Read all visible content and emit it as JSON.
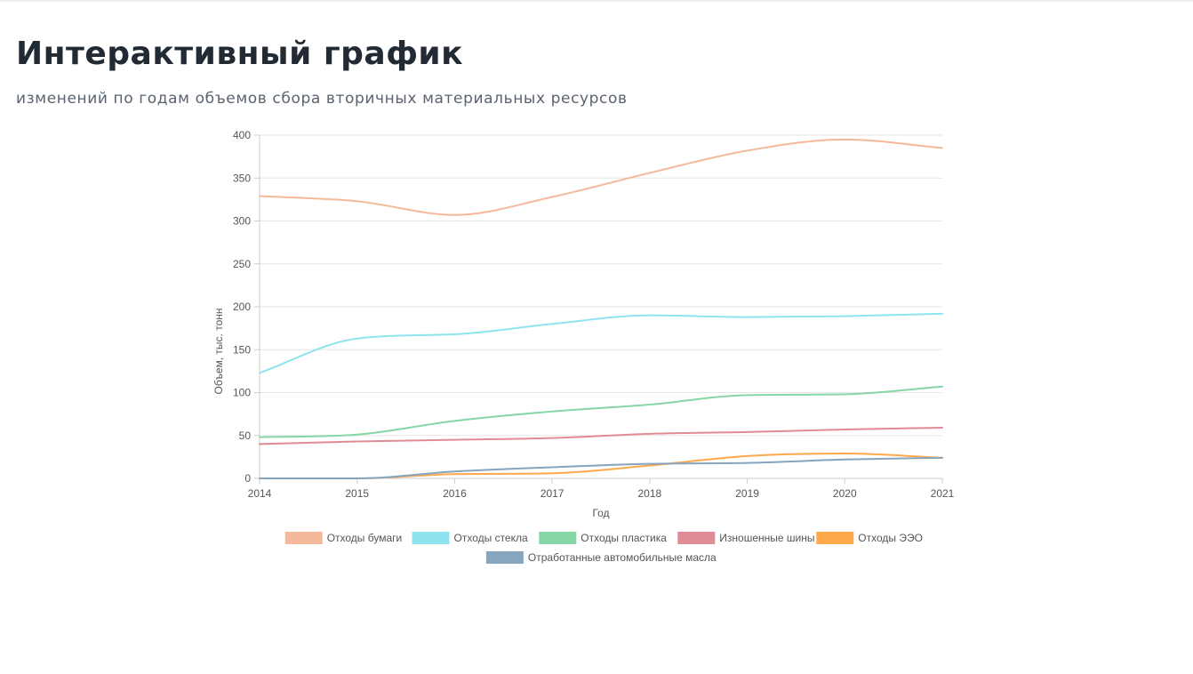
{
  "header": {
    "title": "Интерактивный график",
    "subtitle": "изменений по годам объемов сбора вторичных материальных ресурсов"
  },
  "chart_data": {
    "type": "line",
    "x": [
      2014,
      2015,
      2016,
      2017,
      2018,
      2019,
      2020,
      2021
    ],
    "xlabel": "Год",
    "ylabel": "Объем, тыс. тонн",
    "ylim": [
      0,
      400
    ],
    "yticks": [
      0,
      50,
      100,
      150,
      200,
      250,
      300,
      350,
      400
    ],
    "grid": true,
    "legend": "bottom",
    "series": [
      {
        "name": "Отходы бумаги",
        "color": "#f4b99a",
        "values": [
          329,
          323,
          307,
          328,
          356,
          382,
          395,
          385
        ]
      },
      {
        "name": "Отходы стекла",
        "color": "#8ee3ef",
        "values": [
          123,
          163,
          168,
          180,
          190,
          188,
          189,
          192
        ]
      },
      {
        "name": "Отходы пластика",
        "color": "#85d7a5",
        "values": [
          48,
          51,
          67,
          78,
          86,
          97,
          98,
          107
        ]
      },
      {
        "name": "Изношенные шины",
        "color": "#e08c96",
        "values": [
          40,
          43,
          45,
          47,
          52,
          54,
          57,
          59
        ]
      },
      {
        "name": "Отходы ЭЭО",
        "color": "#ffa94d",
        "values": [
          0,
          0,
          5,
          6,
          15,
          26,
          29,
          24
        ]
      },
      {
        "name": "Отработанные автомобильные масла",
        "color": "#86a5bf",
        "values": [
          0,
          0,
          8,
          13,
          17,
          18,
          22,
          24
        ]
      }
    ]
  }
}
